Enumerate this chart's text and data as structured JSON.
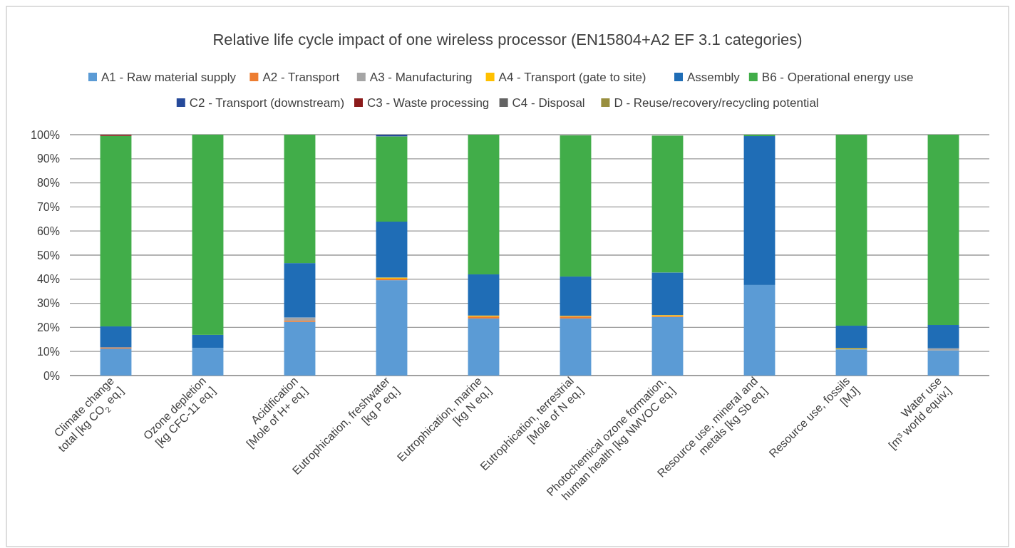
{
  "chart_data": {
    "type": "bar",
    "title": "Relative life cycle impact of one wireless processor (EN15804+A2 EF 3.1 categories)",
    "categories": [
      "Climate change\ntotal [kg CO$_{2}$ eq.]",
      "Ozone depletion\n[kg CFC-11 eq.]",
      "Acidification\n[Mole of H+ eq.]",
      "Eutrophication, freshwater\n[kg P eq.]",
      "Eutrophication, marine\n[kg N eq.]",
      "Eutrophication, terrestrial\n[Mole of N eq.]",
      "Photochemical ozone formation,\nhuman health [kg NMVOC eq.]",
      "Resource use, mineral and\nmetals [kg Sb eq.]",
      "Resource use, fossils\n[MJ]",
      "Water use\n[m³ world equiv.]"
    ],
    "stacked": true,
    "legend": "top",
    "grid": "y",
    "ylim": [
      0,
      100
    ],
    "yticks": [
      {
        "value": 0,
        "label": "0%"
      },
      {
        "value": 10,
        "label": "10%"
      },
      {
        "value": 20,
        "label": "20%"
      },
      {
        "value": 30,
        "label": "30%"
      },
      {
        "value": 40,
        "label": "40%"
      },
      {
        "value": 50,
        "label": "50%"
      },
      {
        "value": 60,
        "label": "60%"
      },
      {
        "value": 70,
        "label": "70%"
      },
      {
        "value": 80,
        "label": "80%"
      },
      {
        "value": 90,
        "label": "90%"
      },
      {
        "value": 100,
        "label": "100%"
      }
    ],
    "series": [
      {
        "name": "A1 - Raw material supply",
        "color": "#5b9bd5",
        "values": [
          11.2,
          11.5,
          22.3,
          39.6,
          23.7,
          23.7,
          24.3,
          37.6,
          10.9,
          10.4
        ]
      },
      {
        "name": "A2 - Transport",
        "color": "#ed7d31",
        "values": [
          0.5,
          0,
          0.5,
          0.6,
          0.8,
          0.8,
          0.4,
          0,
          0,
          0
        ]
      },
      {
        "name": "A3 - Manufacturing",
        "color": "#a5a5a5",
        "values": [
          0,
          0,
          1.3,
          0,
          0,
          null,
          null,
          0,
          0,
          0.9
        ]
      },
      {
        "name": "A4 - Transport (gate to site)",
        "color": "#ffc000",
        "values": [
          0,
          0,
          0,
          0.5,
          0.4,
          0.3,
          0.4,
          0,
          0.4,
          0
        ]
      },
      {
        "name": "Assembly",
        "color": "#1f6db6",
        "values": [
          8.7,
          5.4,
          22.6,
          23.2,
          17.1,
          16.3,
          17.7,
          61.8,
          9.4,
          9.7
        ]
      },
      {
        "name": "B6 - Operational energy use",
        "color": "#41ad49",
        "values": [
          79.1,
          83.1,
          53.3,
          35.4,
          58.0,
          58.6,
          56.8,
          0.6,
          79.3,
          79.0
        ]
      },
      {
        "name": "C2 - Transport (downstream)",
        "color": "#264a9a",
        "values": [
          0,
          0,
          0,
          0.7,
          0,
          0,
          0,
          0,
          0,
          0
        ]
      },
      {
        "name": "C3 - Waste processing",
        "color": "#8b1a1a",
        "values": [
          0.5,
          0,
          0,
          0,
          0,
          0,
          0,
          0,
          0,
          0
        ]
      },
      {
        "name": "C4 - Disposal",
        "color": "#636363",
        "values": [
          0,
          0,
          0,
          0,
          0,
          0,
          0,
          0,
          0,
          0
        ]
      },
      {
        "name": "D - Reuse/recovery/recycling potential",
        "color": "#998f3f",
        "values": [
          0,
          0,
          0,
          0,
          0,
          0,
          0,
          0,
          0,
          0
        ]
      }
    ]
  }
}
